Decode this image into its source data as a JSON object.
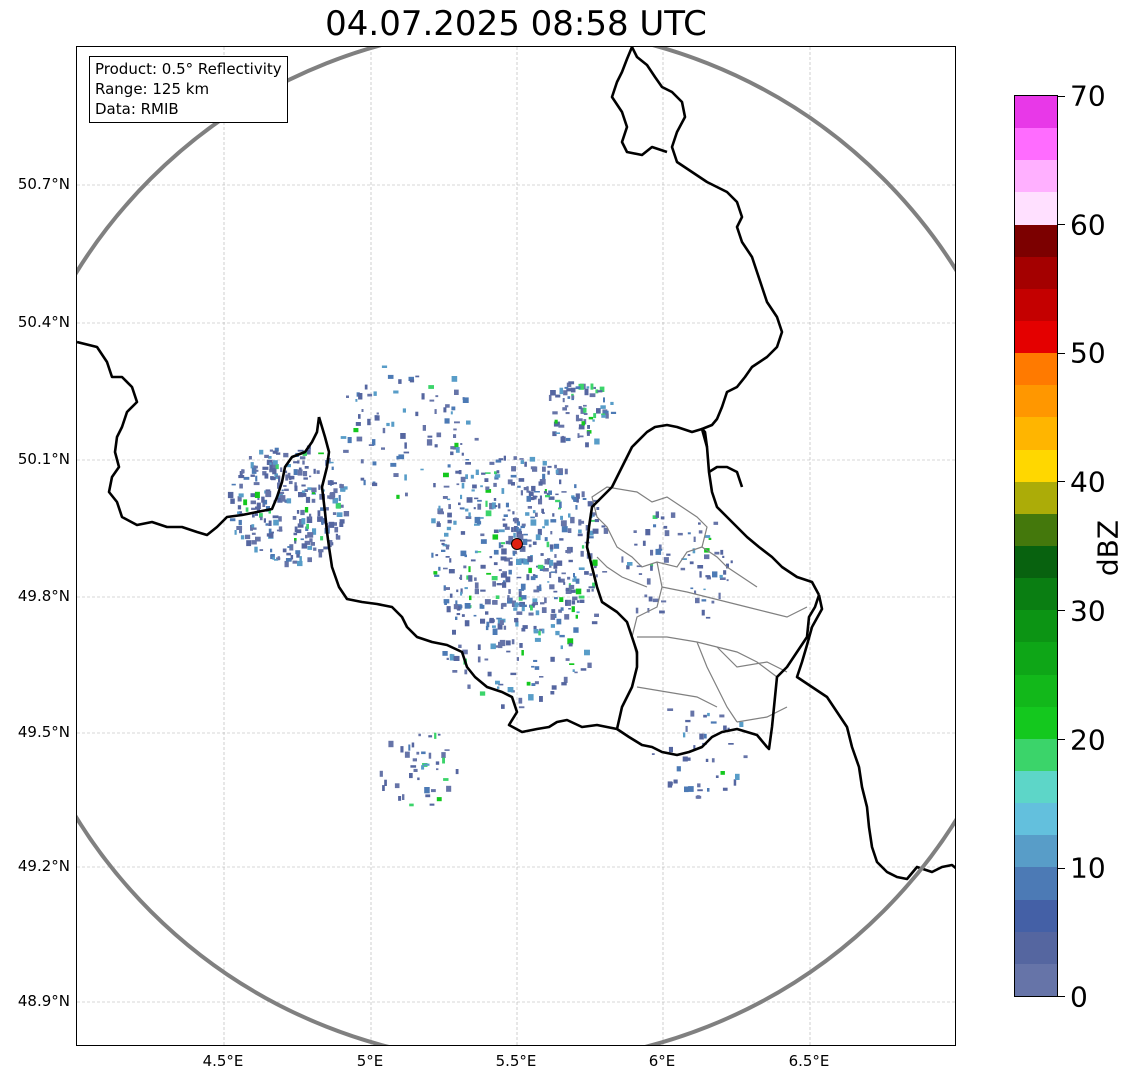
{
  "title": "04.07.2025 08:58 UTC",
  "info": {
    "product": "Product: 0.5° Reflectivity",
    "range": "Range: 125 km",
    "data": "Data: RMIB"
  },
  "lat_ticks": [
    "50.7°N",
    "50.4°N",
    "50.1°N",
    "49.8°N",
    "49.5°N",
    "49.2°N",
    "48.9°N"
  ],
  "lon_ticks": [
    "4.5°E",
    "5°E",
    "5.5°E",
    "6°E",
    "6.5°E"
  ],
  "colorbar": {
    "label": "dBZ",
    "ticks": [
      "0",
      "10",
      "20",
      "30",
      "40",
      "50",
      "60",
      "70"
    ],
    "colors": [
      "#6674a8",
      "#5566a0",
      "#4460a6",
      "#4c7ab5",
      "#589dc8",
      "#63c0dd",
      "#5dd6c8",
      "#3bd46a",
      "#14c81e",
      "#12b81a",
      "#0ea617",
      "#0c9414",
      "#0a7e12",
      "#08620f",
      "#44780c",
      "#acac08",
      "#ffd700",
      "#ffb500",
      "#ff9700",
      "#ff7a00",
      "#e40000",
      "#c40000",
      "#a40000",
      "#7c0000",
      "#ffe0ff",
      "#ffb0ff",
      "#ff6cff",
      "#e838e8"
    ]
  },
  "map": {
    "radar_site": {
      "lon": 5.5,
      "lat": 49.91
    },
    "colors": {
      "range_ring": "#808080",
      "border": "#000000",
      "admin": "#808080",
      "site": "#e02010"
    }
  }
}
